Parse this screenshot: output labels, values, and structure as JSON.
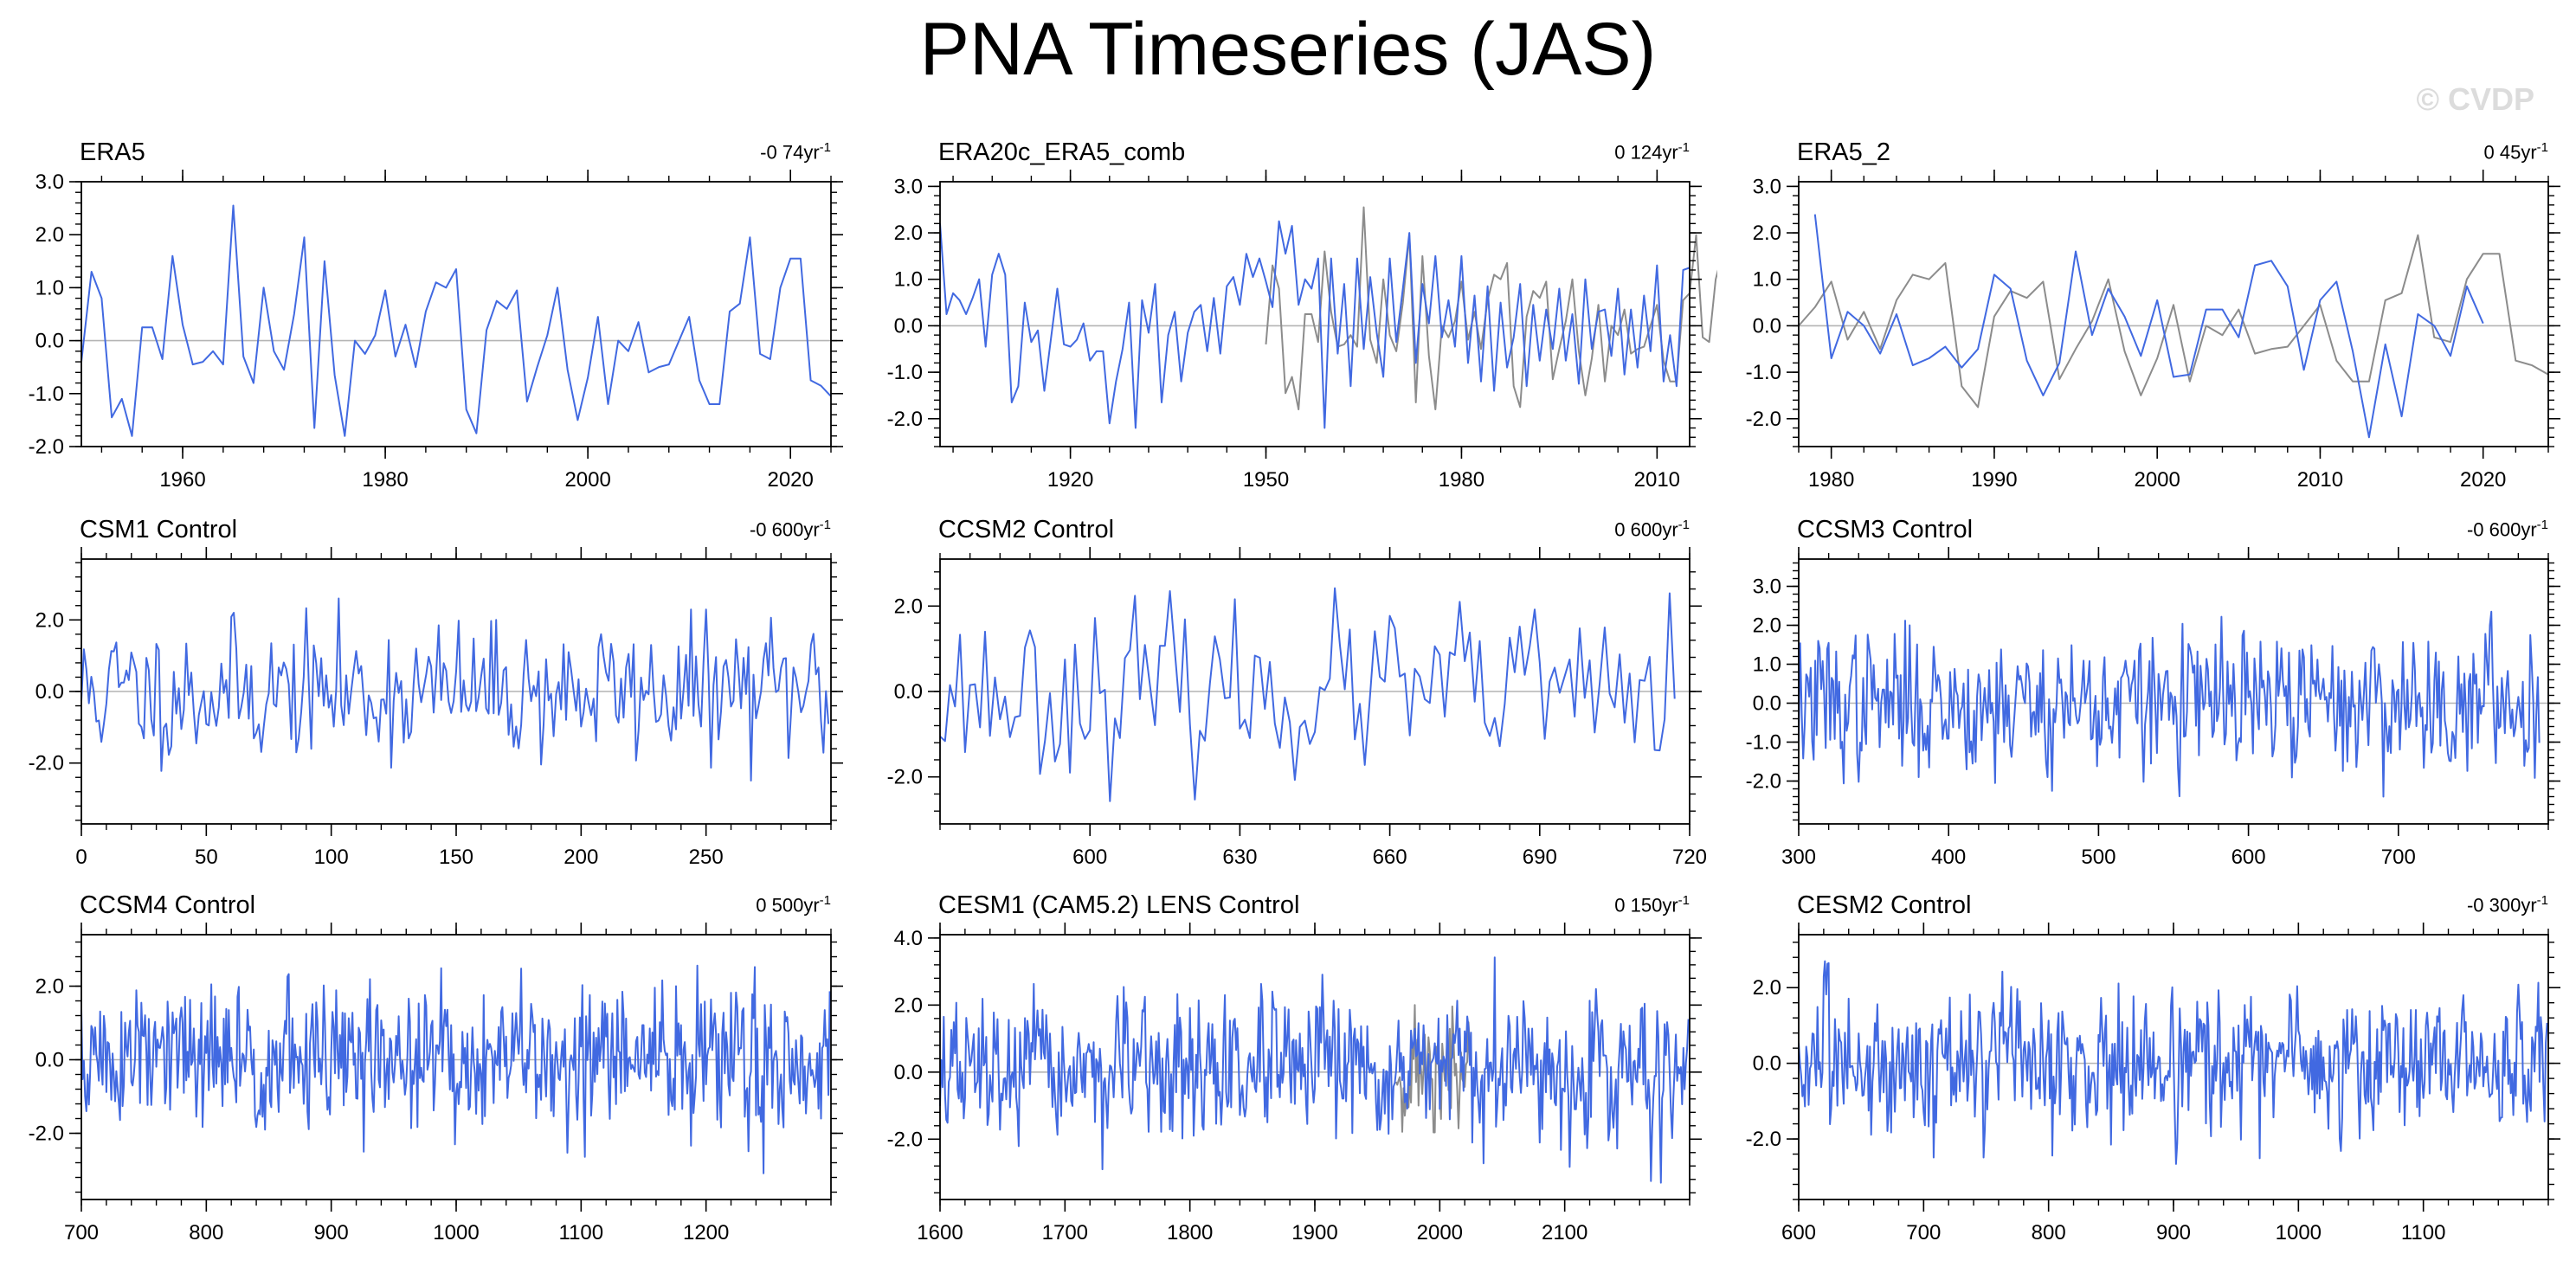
{
  "title": "PNA Timeseries (JAS)",
  "watermark": "© CVDP",
  "colors": {
    "model": "#4169e1",
    "obs2": "#8c8c8c",
    "zero": "#b4b4b4",
    "axis": "#000000"
  },
  "chart_data": [
    {
      "type": "line",
      "title": "ERA5",
      "trend": "-0 74yr",
      "trend_unit": "-1",
      "xlim": [
        1950,
        2024
      ],
      "ylim": [
        -2.0,
        3.0
      ],
      "xticks": [
        1960,
        1980,
        2000,
        2020
      ],
      "yticks": [
        -2.0,
        -1.0,
        0.0,
        1.0,
        2.0,
        3.0
      ],
      "ytick_labels": [
        "-2.0",
        "-1.0",
        "0.0",
        "1.0",
        "2.0",
        "3.0"
      ],
      "series": [
        {
          "x0": 1950,
          "dx": 1,
          "values": [
            -0.4,
            1.3,
            0.8,
            -1.45,
            -1.1,
            -1.8,
            0.25,
            0.25,
            -0.35,
            1.6,
            0.3,
            -0.45,
            -0.4,
            -0.2,
            -0.45,
            2.55,
            -0.3,
            -0.8,
            1.0,
            -0.2,
            -0.55,
            0.5,
            1.95,
            -1.65,
            1.5,
            -0.65,
            -1.8,
            0.0,
            -0.25,
            0.1,
            0.95,
            -0.3,
            0.3,
            -0.5,
            0.55,
            1.1,
            1.0,
            1.35,
            -1.3,
            -1.75,
            0.2,
            0.75,
            0.6,
            0.95,
            -1.15,
            -0.5,
            0.1,
            1.0,
            -0.55,
            -1.5,
            -0.7,
            0.45,
            -1.2,
            0.0,
            -0.2,
            0.35,
            -0.6,
            -0.5,
            -0.45,
            0.0,
            0.45,
            -0.75,
            -1.2,
            -1.2,
            0.55,
            0.7,
            1.95,
            -0.25,
            -0.35,
            1.0,
            1.55,
            1.55,
            -0.75,
            -0.85,
            -1.05
          ]
        }
      ]
    },
    {
      "type": "line",
      "title": "ERA20c_ERA5_comb",
      "trend": "0 124yr",
      "trend_unit": "-1",
      "xlim": [
        1900,
        2015
      ],
      "ylim": [
        -2.6,
        3.1
      ],
      "xticks": [
        1920,
        1950,
        1980,
        2010
      ],
      "yticks": [
        -2.0,
        -1.0,
        0.0,
        1.0,
        2.0,
        3.0
      ],
      "ytick_labels": [
        "-2.0",
        "-1.0",
        "0.0",
        "1.0",
        "2.0",
        "3.0"
      ],
      "series": [
        {
          "x0": 1900,
          "dx": 1,
          "values": [
            2.2,
            0.25,
            0.7,
            0.55,
            0.25,
            0.6,
            1.0,
            -0.45,
            1.1,
            1.55,
            1.1,
            -1.65,
            -1.3,
            0.5,
            -0.35,
            -0.1,
            -1.4,
            -0.3,
            0.8,
            -0.4,
            -0.45,
            -0.3,
            0.05,
            -0.75,
            -0.55,
            -0.55,
            -2.1,
            -1.2,
            -0.5,
            0.5,
            -2.2,
            0.55,
            -0.15,
            0.9,
            -1.65,
            -0.2,
            0.3,
            -1.2,
            -0.15,
            0.3,
            0.45,
            -0.55,
            0.6,
            -0.6,
            0.85,
            1.05,
            0.45,
            1.55,
            1.05,
            1.45,
            0.95,
            0.4,
            2.25,
            1.55,
            2.15,
            0.45,
            1.0,
            0.8,
            1.45,
            -2.2,
            1.45,
            -0.6,
            0.9,
            -1.3,
            1.45,
            -0.5,
            1.05,
            -0.15,
            -1.1,
            1.45,
            -0.35,
            0.8,
            2.0,
            -0.8,
            0.9,
            0.05,
            1.5,
            -0.25,
            0.55,
            -0.45,
            1.5,
            -0.8,
            0.65,
            -1.2,
            0.85,
            -1.4,
            0.5,
            -0.9,
            -0.25,
            0.9,
            -1.3,
            0.45,
            -0.75,
            0.35,
            -0.5,
            0.8,
            -0.75,
            0.25,
            -1.25,
            1.0,
            -0.5,
            0.3,
            0.35,
            -0.65,
            0.8,
            -1.05,
            0.35,
            -0.9,
            0.65,
            -0.55,
            1.3,
            -1.2,
            -0.2,
            -1.3,
            1.2,
            1.25
          ]
        },
        {
          "x0": 1950,
          "dx": 1,
          "values": [
            -0.4,
            1.3,
            0.8,
            -1.45,
            -1.1,
            -1.8,
            0.25,
            0.25,
            -0.35,
            1.6,
            0.3,
            -0.45,
            -0.4,
            -0.2,
            -0.45,
            2.55,
            -0.3,
            -0.8,
            1.0,
            -0.2,
            -0.55,
            0.5,
            1.95,
            -1.65,
            1.5,
            -0.65,
            -1.8,
            0.0,
            -0.25,
            0.1,
            0.95,
            -0.3,
            0.3,
            -0.5,
            0.55,
            1.1,
            1.0,
            1.35,
            -1.3,
            -1.75,
            0.2,
            0.75,
            0.6,
            0.95,
            -1.15,
            -0.5,
            0.1,
            1.0,
            -0.55,
            -1.5,
            -0.7,
            0.45,
            -1.2,
            0.0,
            -0.2,
            0.35,
            -0.6,
            -0.5,
            -0.45,
            0.0,
            0.45,
            -0.75,
            -1.2,
            -1.2,
            0.55,
            0.7,
            1.95,
            -0.25,
            -0.35,
            1.0,
            1.55,
            1.55,
            -0.75,
            -0.85,
            -1.05
          ]
        }
      ]
    },
    {
      "type": "line",
      "title": "ERA5_2",
      "trend": "0 45yr",
      "trend_unit": "-1",
      "xlim": [
        1978,
        2024
      ],
      "ylim": [
        -2.6,
        3.1
      ],
      "xticks": [
        1980,
        1990,
        2000,
        2010,
        2020
      ],
      "yticks": [
        -2.0,
        -1.0,
        0.0,
        1.0,
        2.0,
        3.0
      ],
      "ytick_labels": [
        "-2.0",
        "-1.0",
        "0.0",
        "1.0",
        "2.0",
        "3.0"
      ],
      "series": [
        {
          "x0": 1979,
          "dx": 1,
          "values": [
            2.4,
            -0.7,
            0.3,
            0.0,
            -0.6,
            0.25,
            -0.85,
            -0.7,
            -0.45,
            -0.9,
            -0.5,
            1.1,
            0.8,
            -0.75,
            -1.5,
            -0.8,
            1.6,
            -0.2,
            0.8,
            0.2,
            -0.65,
            0.55,
            -1.1,
            -1.05,
            0.35,
            0.35,
            -0.25,
            1.3,
            1.4,
            0.85,
            -0.95,
            0.55,
            0.95,
            -0.55,
            -2.4,
            -0.4,
            -1.95,
            0.25,
            0.0,
            -0.65,
            0.85,
            0.05
          ]
        },
        {
          "x0": 1978,
          "dx": 1,
          "values": [
            0.0,
            0.4,
            0.95,
            -0.3,
            0.3,
            -0.5,
            0.55,
            1.1,
            1.0,
            1.35,
            -1.3,
            -1.75,
            0.2,
            0.75,
            0.6,
            0.95,
            -1.15,
            -0.5,
            0.1,
            1.0,
            -0.55,
            -1.5,
            -0.7,
            0.45,
            -1.2,
            0.0,
            -0.2,
            0.35,
            -0.6,
            -0.5,
            -0.45,
            0.0,
            0.45,
            -0.75,
            -1.2,
            -1.2,
            0.55,
            0.7,
            1.95,
            -0.25,
            -0.35,
            1.0,
            1.55,
            1.55,
            -0.75,
            -0.85,
            -1.05
          ]
        }
      ]
    },
    {
      "type": "line",
      "title": "CSM1 Control",
      "trend": "-0 600yr",
      "trend_unit": "-1",
      "xlim": [
        0,
        300
      ],
      "ylim": [
        -3.7,
        3.7
      ],
      "xticks": [
        0,
        50,
        100,
        150,
        200,
        250
      ],
      "yticks": [
        -2.0,
        0.0,
        2.0
      ],
      "ytick_labels": [
        "-2.0",
        "0.0",
        "2.0"
      ],
      "series": [
        {
          "x0": 0,
          "dx": 1,
          "n": 300,
          "gen": {
            "seed": 11,
            "amp": 0.95,
            "min": -3.3,
            "max": 3.3
          }
        }
      ]
    },
    {
      "type": "line",
      "title": "CCSM2 Control",
      "trend": "0 600yr",
      "trend_unit": "-1",
      "xlim": [
        570,
        720
      ],
      "ylim": [
        -3.1,
        3.1
      ],
      "xticks": [
        600,
        630,
        660,
        690,
        720
      ],
      "yticks": [
        -2.0,
        0.0,
        2.0
      ],
      "ytick_labels": [
        "-2.0",
        "0.0",
        "2.0"
      ],
      "series": [
        {
          "x0": 570,
          "dx": 1,
          "n": 148,
          "gen": {
            "seed": 23,
            "amp": 0.95,
            "min": -2.7,
            "max": 2.8
          }
        }
      ]
    },
    {
      "type": "line",
      "title": "CCSM3 Control",
      "trend": "-0 600yr",
      "trend_unit": "-1",
      "xlim": [
        300,
        800
      ],
      "ylim": [
        -3.1,
        3.7
      ],
      "xticks": [
        300,
        400,
        500,
        600,
        700
      ],
      "yticks": [
        -2.0,
        -1.0,
        0.0,
        1.0,
        2.0,
        3.0
      ],
      "ytick_labels": [
        "-2.0",
        "-1.0",
        "0.0",
        "1.0",
        "2.0",
        "3.0"
      ],
      "series": [
        {
          "x0": 300,
          "dx": 1,
          "n": 495,
          "gen": {
            "seed": 37,
            "amp": 0.9,
            "min": -2.4,
            "max": 3.1
          }
        }
      ]
    },
    {
      "type": "line",
      "title": "CCSM4 Control",
      "trend": "0 500yr",
      "trend_unit": "-1",
      "xlim": [
        700,
        1300
      ],
      "ylim": [
        -3.8,
        3.4
      ],
      "xticks": [
        700,
        800,
        900,
        1000,
        1100,
        1200
      ],
      "yticks": [
        -2.0,
        0.0,
        2.0
      ],
      "ytick_labels": [
        "-2.0",
        "0.0",
        "2.0"
      ],
      "series": [
        {
          "x0": 700,
          "dx": 1,
          "n": 600,
          "gen": {
            "seed": 51,
            "amp": 1.0,
            "min": -3.3,
            "max": 2.8
          }
        }
      ]
    },
    {
      "type": "line",
      "title": "CESM1 (CAM5.2) LENS Control",
      "trend": "0 150yr",
      "trend_unit": "-1",
      "xlim": [
        1600,
        2200
      ],
      "ylim": [
        -3.8,
        4.1
      ],
      "xticks": [
        1600,
        1700,
        1800,
        1900,
        2000,
        2100
      ],
      "yticks": [
        -2.0,
        0.0,
        2.0,
        4.0
      ],
      "ytick_labels": [
        "-2.0",
        "0.0",
        "2.0",
        "4.0"
      ],
      "series": [
        {
          "x0": 1600,
          "dx": 1,
          "n": 600,
          "gen": {
            "seed": 67,
            "amp": 1.0,
            "min": -3.3,
            "max": 3.6
          }
        },
        {
          "x0": 1965,
          "dx": 1,
          "n": 60,
          "gen": {
            "seed": 71,
            "amp": 0.9,
            "min": -1.8,
            "max": 2.0
          }
        }
      ]
    },
    {
      "type": "line",
      "title": "CESM2 Control",
      "trend": "-0 300yr",
      "trend_unit": "-1",
      "xlim": [
        600,
        1200
      ],
      "ylim": [
        -3.6,
        3.4
      ],
      "xticks": [
        600,
        700,
        800,
        900,
        1000,
        1100
      ],
      "yticks": [
        -2.0,
        0.0,
        2.0
      ],
      "ytick_labels": [
        "-2.0",
        "0.0",
        "2.0"
      ],
      "series": [
        {
          "x0": 600,
          "dx": 1,
          "n": 600,
          "gen": {
            "seed": 83,
            "amp": 0.95,
            "min": -3.2,
            "max": 2.7
          }
        }
      ]
    }
  ]
}
